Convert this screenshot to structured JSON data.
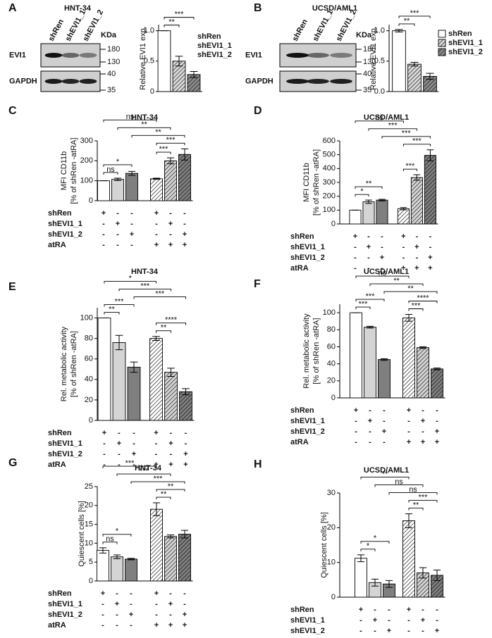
{
  "chart_data": [
    {
      "type": "bar",
      "panel": "A",
      "title": "HNT-34",
      "ylabel": [
        "Relative EVI1 exp."
      ],
      "ylim": [
        0,
        1.1
      ],
      "yticks": [
        0,
        0.5,
        {
          "value": 1,
          "label": "1.0"
        }
      ],
      "values": [
        1.0,
        0.5,
        0.28
      ],
      "errors": [
        0,
        0.08,
        0.05
      ],
      "colors": [
        "#ffffff",
        "#d9d9d9",
        "#8c8c8c"
      ],
      "hatched": [
        false,
        true,
        true
      ],
      "significance": [
        {
          "text": "**",
          "from": 0,
          "to": 1
        },
        {
          "text": "***",
          "from": 0,
          "to": 2
        }
      ],
      "legend": [
        "shRen",
        "shEVI1_1",
        "shEVI1_2"
      ],
      "legend_swatches": false
    },
    {
      "type": "bar",
      "panel": "B",
      "title": "UCSD/AML1",
      "ylabel": [
        "Relative EVI1 exp."
      ],
      "ylim": [
        0,
        1.1
      ],
      "yticks": [
        {
          "value": 0,
          "label": "0.0"
        },
        0.5,
        {
          "value": 1,
          "label": "1.0"
        }
      ],
      "values": [
        1.0,
        0.45,
        0.25
      ],
      "errors": [
        0.02,
        0.03,
        0.05
      ],
      "colors": [
        "#ffffff",
        "#d9d9d9",
        "#8c8c8c"
      ],
      "hatched": [
        false,
        true,
        true
      ],
      "significance": [
        {
          "text": "**",
          "from": 0,
          "to": 1
        },
        {
          "text": "***",
          "from": 0,
          "to": 2
        }
      ],
      "legend": [
        "shRen",
        "shEVI1_1",
        "shEVI1_2"
      ],
      "legend_swatches": true
    },
    {
      "type": "bar",
      "panel": "C",
      "title": "HNT-34",
      "ylabel": [
        "MFI CD11b",
        "[% of shRen -atRA]"
      ],
      "ylim": [
        0,
        300
      ],
      "yticks": [
        0,
        100,
        200,
        300
      ],
      "values": [
        100,
        107,
        137,
        110,
        200,
        232
      ],
      "errors": [
        0,
        6,
        10,
        3,
        15,
        28
      ],
      "colors": [
        "#ffffff",
        "#d4d4d4",
        "#7f7f7f",
        "#ffffff",
        "#d4d4d4",
        "#7f7f7f"
      ],
      "hatched": [
        false,
        false,
        false,
        true,
        true,
        true
      ],
      "significance": [
        {
          "text": "ns",
          "from": 0,
          "to": 1
        },
        {
          "text": "*",
          "from": 0,
          "to": 2
        },
        {
          "text": "***",
          "from": 3,
          "to": 4
        },
        {
          "text": "***",
          "from": 3,
          "to": 5
        },
        {
          "text": "**",
          "from": 2,
          "to": 5
        },
        {
          "text": "**",
          "from": 1,
          "to": 4
        },
        {
          "text": "ns",
          "from": 0,
          "to": 3
        }
      ]
    },
    {
      "type": "bar",
      "panel": "D",
      "title": "UCSD/AML1",
      "ylabel": [
        "MFI CD11b",
        "[% of shRen -atRA]"
      ],
      "ylim": [
        0,
        600
      ],
      "yticks": [
        0,
        100,
        200,
        300,
        400,
        500,
        600
      ],
      "values": [
        100,
        160,
        172,
        110,
        335,
        495
      ],
      "errors": [
        0,
        12,
        6,
        8,
        20,
        40
      ],
      "colors": [
        "#ffffff",
        "#d4d4d4",
        "#7f7f7f",
        "#ffffff",
        "#d4d4d4",
        "#7f7f7f"
      ],
      "hatched": [
        false,
        false,
        false,
        true,
        true,
        true
      ],
      "significance": [
        {
          "text": "*",
          "from": 0,
          "to": 1
        },
        {
          "text": "**",
          "from": 0,
          "to": 2
        },
        {
          "text": "***",
          "from": 3,
          "to": 4
        },
        {
          "text": "***",
          "from": 3,
          "to": 5
        },
        {
          "text": "***",
          "from": 2,
          "to": 5
        },
        {
          "text": "***",
          "from": 1,
          "to": 4
        },
        {
          "text": "ns",
          "from": 0,
          "to": 3
        }
      ]
    },
    {
      "type": "bar",
      "panel": "E",
      "title": "HNT-34",
      "ylabel": [
        "Rel. metabolic activity",
        "[% of shRen -atRA]"
      ],
      "ylim": [
        0,
        110
      ],
      "yticks": [
        0,
        20,
        40,
        60,
        80,
        100
      ],
      "values": [
        100,
        76,
        52,
        80,
        47,
        28
      ],
      "errors": [
        0,
        7,
        5,
        2,
        4,
        3
      ],
      "colors": [
        "#ffffff",
        "#d4d4d4",
        "#7f7f7f",
        "#ffffff",
        "#d4d4d4",
        "#7f7f7f"
      ],
      "hatched": [
        false,
        false,
        false,
        true,
        true,
        true
      ],
      "significance": [
        {
          "text": "**",
          "from": 0,
          "to": 1
        },
        {
          "text": "***",
          "from": 0,
          "to": 2
        },
        {
          "text": "**",
          "from": 3,
          "to": 4
        },
        {
          "text": "****",
          "from": 3,
          "to": 5
        },
        {
          "text": "***",
          "from": 2,
          "to": 5
        },
        {
          "text": "***",
          "from": 1,
          "to": 4
        },
        {
          "text": "*",
          "from": 0,
          "to": 3
        }
      ]
    },
    {
      "type": "bar",
      "panel": "F",
      "title": "UCSD/AML1",
      "ylabel": [
        "Rel. metabolic activity",
        "[% of shRen -atRA]"
      ],
      "ylim": [
        0,
        110
      ],
      "yticks": [
        0,
        20,
        40,
        60,
        80,
        100
      ],
      "values": [
        100,
        83,
        45,
        94,
        59,
        34
      ],
      "errors": [
        0,
        1,
        1,
        4,
        1,
        1
      ],
      "colors": [
        "#ffffff",
        "#d4d4d4",
        "#7f7f7f",
        "#ffffff",
        "#d4d4d4",
        "#7f7f7f"
      ],
      "hatched": [
        false,
        false,
        false,
        true,
        true,
        true
      ],
      "significance": [
        {
          "text": "***",
          "from": 0,
          "to": 1
        },
        {
          "text": "***",
          "from": 0,
          "to": 2
        },
        {
          "text": "***",
          "from": 3,
          "to": 4
        },
        {
          "text": "****",
          "from": 3,
          "to": 5
        },
        {
          "text": "**",
          "from": 2,
          "to": 5
        },
        {
          "text": "**",
          "from": 1,
          "to": 4
        },
        {
          "text": "ns",
          "from": 0,
          "to": 3
        }
      ]
    },
    {
      "type": "bar",
      "panel": "G",
      "title": "HNT-34",
      "ylabel": [
        "Quiescent cells [%]"
      ],
      "ylim": [
        0,
        25
      ],
      "yticks": [
        0,
        5,
        10,
        15,
        20,
        25
      ],
      "values": [
        8.1,
        6.4,
        5.8,
        19,
        11.8,
        12.4
      ],
      "errors": [
        0.7,
        0.5,
        0.2,
        1.7,
        0.4,
        1
      ],
      "colors": [
        "#ffffff",
        "#d4d4d4",
        "#7f7f7f",
        "#ffffff",
        "#d4d4d4",
        "#7f7f7f"
      ],
      "hatched": [
        false,
        false,
        false,
        true,
        true,
        true
      ],
      "significance": [
        {
          "text": "ns",
          "from": 0,
          "to": 1
        },
        {
          "text": "*",
          "from": 0,
          "to": 2
        },
        {
          "text": "**",
          "from": 3,
          "to": 4
        },
        {
          "text": "**",
          "from": 3,
          "to": 5
        },
        {
          "text": "***",
          "from": 2,
          "to": 5
        },
        {
          "text": "***",
          "from": 1,
          "to": 4
        },
        {
          "text": "***",
          "from": 0,
          "to": 3
        }
      ]
    },
    {
      "type": "bar",
      "panel": "H",
      "title": "UCSD/AML1",
      "ylabel": [
        "Quiescent cells [%]"
      ],
      "ylim": [
        0,
        30
      ],
      "yticks": [
        0,
        10,
        20,
        30
      ],
      "values": [
        11.2,
        4.2,
        3.8,
        22,
        7,
        6.3
      ],
      "errors": [
        1,
        1,
        1,
        2,
        1.5,
        1.5
      ],
      "colors": [
        "#ffffff",
        "#d4d4d4",
        "#7f7f7f",
        "#ffffff",
        "#d4d4d4",
        "#7f7f7f"
      ],
      "hatched": [
        false,
        false,
        false,
        true,
        true,
        true
      ],
      "significance": [
        {
          "text": "*",
          "from": 0,
          "to": 1
        },
        {
          "text": "*",
          "from": 0,
          "to": 2
        },
        {
          "text": "**",
          "from": 3,
          "to": 4
        },
        {
          "text": "***",
          "from": 3,
          "to": 5
        },
        {
          "text": "ns",
          "from": 2,
          "to": 5
        },
        {
          "text": "ns",
          "from": 1,
          "to": 4
        },
        {
          "text": "**",
          "from": 0,
          "to": 3
        }
      ]
    }
  ],
  "design": {
    "rows": [
      "shRen",
      "shEVI1_1",
      "shEVI1_2",
      "atRA"
    ],
    "signs": [
      [
        "+",
        "-",
        "-",
        "+",
        "-",
        "-"
      ],
      [
        "-",
        "+",
        "-",
        "-",
        "+",
        "-"
      ],
      [
        "-",
        "-",
        "+",
        "-",
        "-",
        "+"
      ],
      [
        "-",
        "-",
        "-",
        "+",
        "+",
        "+"
      ]
    ]
  },
  "blots": [
    {
      "lanes": [
        "shRen",
        "shEVI1_1",
        "shEVI1_2"
      ],
      "proteins": [
        "EVI1",
        "GAPDH"
      ],
      "unit": "KDa",
      "markers": [
        "180",
        "130",
        "40",
        "35"
      ]
    },
    {
      "lanes": [
        "shRen",
        "shEVI1_1",
        "shEVI1_2"
      ],
      "proteins": [
        "EVI1",
        "GAPDH"
      ],
      "unit": "KDa",
      "markers": [
        "180",
        "130",
        "40",
        "35"
      ]
    }
  ]
}
